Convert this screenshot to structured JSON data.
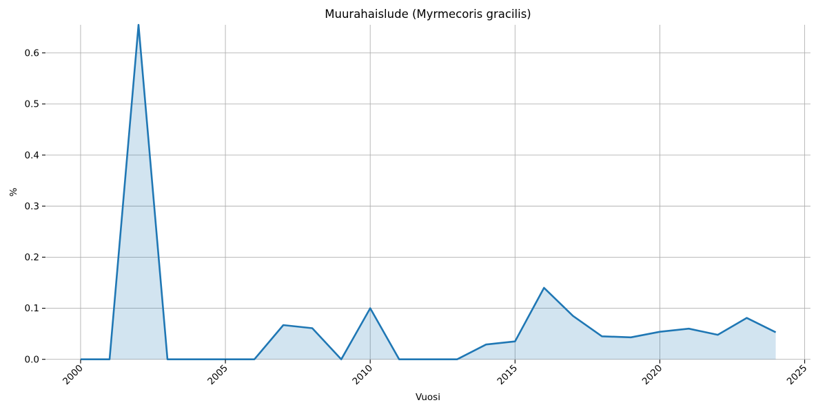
{
  "chart_data": {
    "type": "area",
    "title": "Muurahaislude (Myrmecoris gracilis)",
    "xlabel": "Vuosi",
    "ylabel": "%",
    "x": [
      2000,
      2001,
      2002,
      2003,
      2004,
      2005,
      2006,
      2007,
      2008,
      2009,
      2010,
      2011,
      2012,
      2013,
      2014,
      2015,
      2016,
      2017,
      2018,
      2019,
      2020,
      2021,
      2022,
      2023,
      2024
    ],
    "y": [
      0,
      0,
      0.655,
      0,
      0,
      0,
      0,
      0.067,
      0.061,
      0,
      0.1,
      0,
      0,
      0,
      0.029,
      0.035,
      0.14,
      0.085,
      0.045,
      0.043,
      0.054,
      0.06,
      0.048,
      0.081,
      0.053
    ],
    "xticks": [
      {
        "v": 2000,
        "label": "2000"
      },
      {
        "v": 2005,
        "label": "2005"
      },
      {
        "v": 2010,
        "label": "2010"
      },
      {
        "v": 2015,
        "label": "2015"
      },
      {
        "v": 2020,
        "label": "2020"
      },
      {
        "v": 2025,
        "label": "2025"
      }
    ],
    "yticks": [
      {
        "v": 0.0,
        "label": "0.0"
      },
      {
        "v": 0.1,
        "label": "0.1"
      },
      {
        "v": 0.2,
        "label": "0.2"
      },
      {
        "v": 0.3,
        "label": "0.3"
      },
      {
        "v": 0.4,
        "label": "0.4"
      },
      {
        "v": 0.5,
        "label": "0.5"
      },
      {
        "v": 0.6,
        "label": "0.6"
      }
    ],
    "xlim": [
      1998.8,
      2025.2
    ],
    "ylim": [
      0,
      0.655
    ],
    "grid": true,
    "legend_position": "none",
    "line_color": "#1f77b4",
    "fill_color": "rgba(31,119,180,0.2)",
    "grid_color": "#b0b0b0",
    "tick_color": "#000000",
    "background_color": "#ffffff"
  }
}
